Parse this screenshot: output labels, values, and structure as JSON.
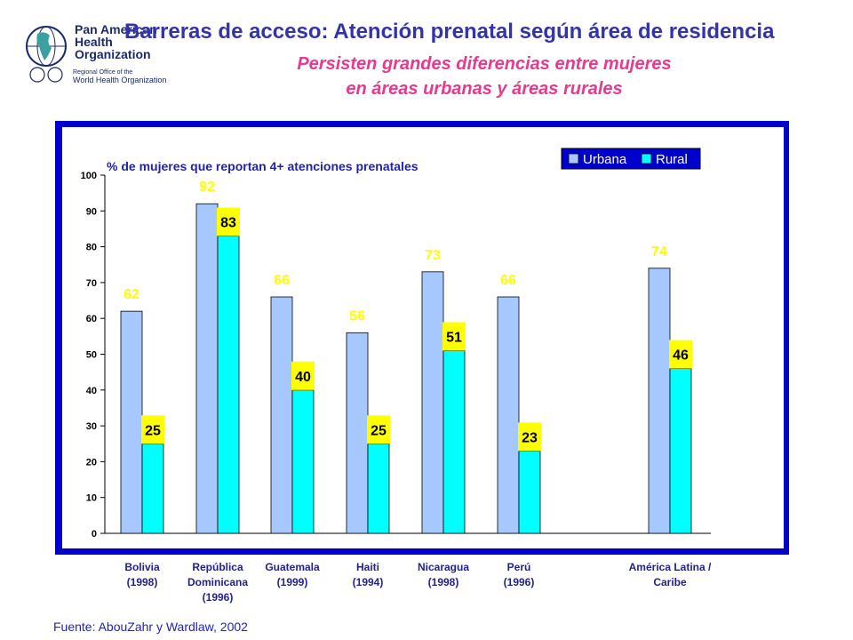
{
  "header": {
    "logo_line1": "Pan American",
    "logo_line2": "Health",
    "logo_line3": "Organization",
    "logo_sub1": "Regional Office of the",
    "logo_sub2": "World Health Organization",
    "title": "Barreras de acceso: Atención prenatal según área de residencia",
    "subtitle_line1": "Persisten grandes diferencias entre mujeres",
    "subtitle_line2": "en áreas urbanas y áreas rurales"
  },
  "footer": {
    "source": "Fuente: AbouZahr y Wardlaw, 2002"
  },
  "colors": {
    "urbana": "#a6c8ff",
    "rural": "#00ffff",
    "frame": "#0000cc",
    "label_bg": "#ffff00",
    "label_text": "#ffff00"
  },
  "chart_data": {
    "type": "bar",
    "title": "% de mujeres que reportan 4+ atenciones prenatales",
    "xlabel": "",
    "ylabel": "",
    "ylim": [
      0,
      100
    ],
    "yticks": [
      0,
      10,
      20,
      30,
      40,
      50,
      60,
      70,
      80,
      90,
      100
    ],
    "grid": false,
    "legend_position": "top-right",
    "categories": [
      [
        "Bolivia",
        "(1998)"
      ],
      [
        "República",
        "Dominicana",
        "(1996)"
      ],
      [
        "Guatemala",
        "(1999)"
      ],
      [
        "Haiti",
        "(1994)"
      ],
      [
        "Nicaragua",
        "(1998)"
      ],
      [
        "Perú",
        "(1996)"
      ],
      [
        "América Latina /",
        "Caribe"
      ]
    ],
    "series": [
      {
        "name": "Urbana",
        "values": [
          62,
          92,
          66,
          56,
          73,
          66,
          74
        ]
      },
      {
        "name": "Rural",
        "values": [
          25,
          83,
          40,
          25,
          51,
          23,
          46
        ]
      }
    ]
  }
}
